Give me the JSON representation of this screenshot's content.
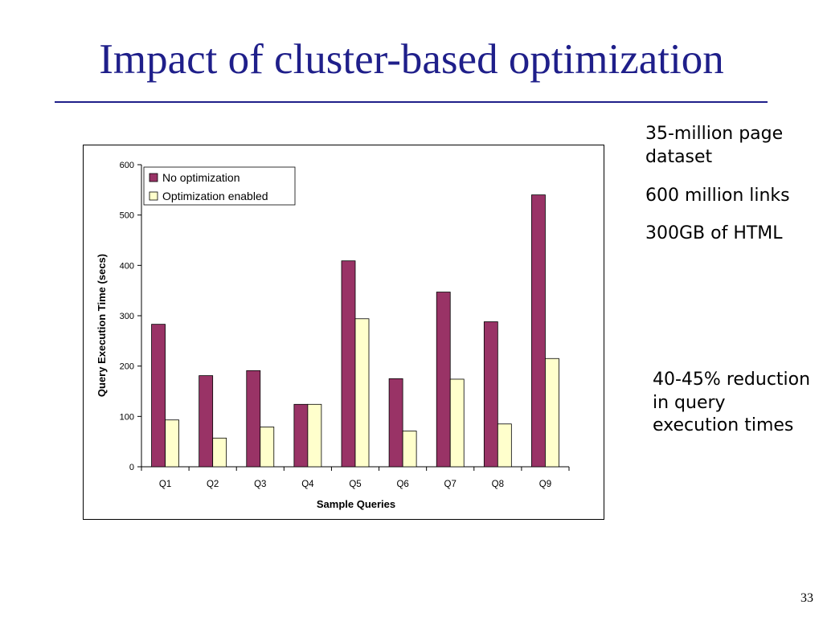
{
  "slide": {
    "title": "Impact of cluster-based optimization",
    "page_number": "33",
    "notes": [
      "35-million page dataset",
      "600 million links",
      "300GB of HTML"
    ],
    "callout": "40-45% reduction in query execution times"
  },
  "colors": {
    "title": "#1f1f8a",
    "series_no_opt": "#993366",
    "series_opt": "#ffffcc"
  },
  "chart_data": {
    "type": "bar",
    "title": "",
    "xlabel": "Sample Queries",
    "ylabel": "Query Execution Time (secs)",
    "ylim": [
      0,
      600
    ],
    "yticks": [
      0,
      100,
      200,
      300,
      400,
      500,
      600
    ],
    "categories": [
      "Q1",
      "Q2",
      "Q3",
      "Q4",
      "Q5",
      "Q6",
      "Q7",
      "Q8",
      "Q9"
    ],
    "series": [
      {
        "name": "No optimization",
        "color": "#993366",
        "values": [
          283,
          181,
          191,
          124,
          409,
          175,
          347,
          288,
          540
        ]
      },
      {
        "name": "Optimization enabled",
        "color": "#ffffcc",
        "values": [
          93,
          57,
          79,
          124,
          294,
          71,
          174,
          85,
          215
        ]
      }
    ],
    "legend": "top-left",
    "grid": false
  }
}
